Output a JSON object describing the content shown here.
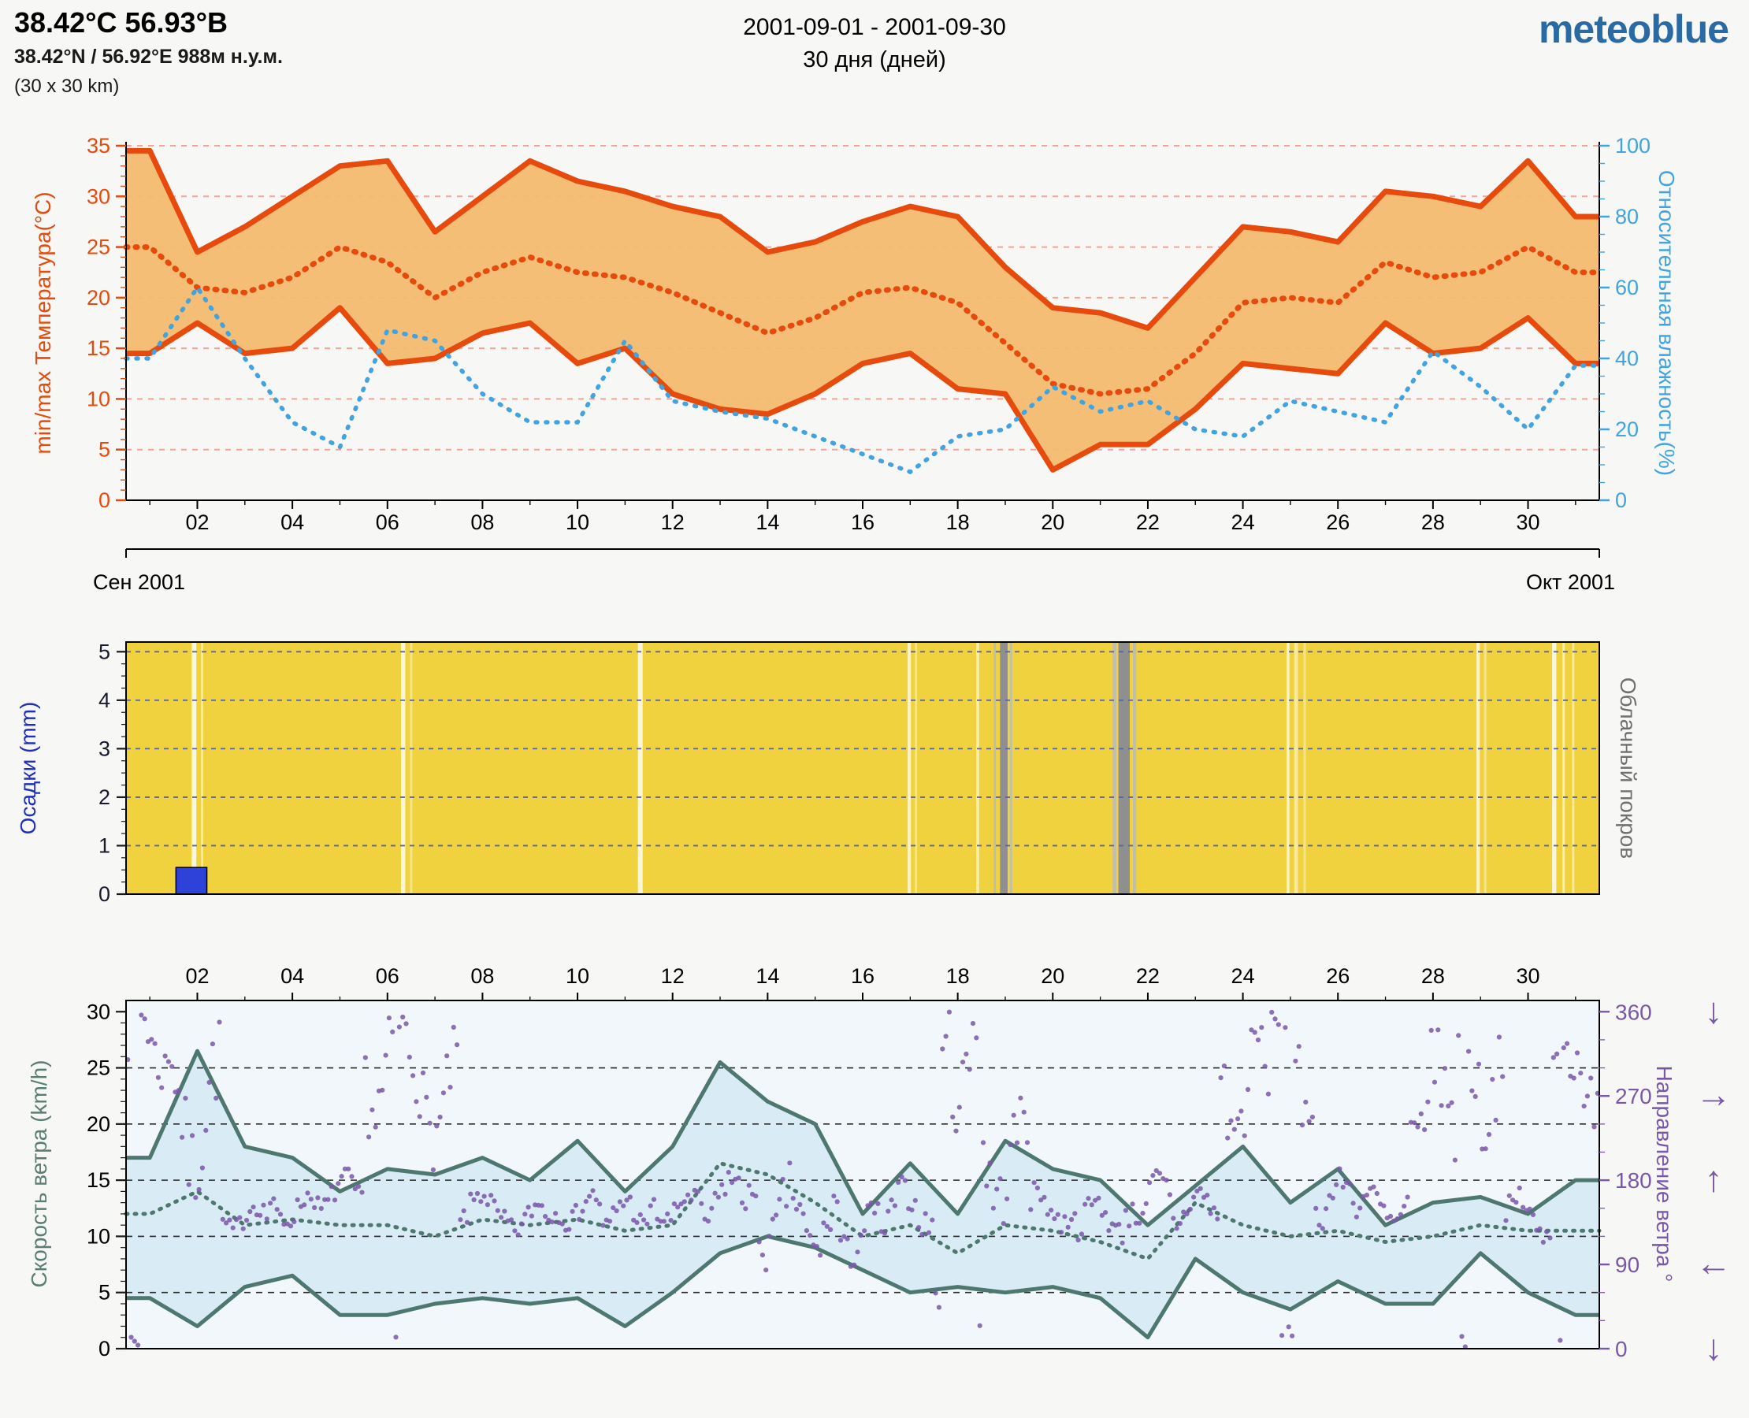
{
  "header": {
    "title": "38.42°С 56.93°В",
    "subtitle": "38.42°N / 56.92°E   988м н.у.м.",
    "area": "(30 x 30 km)",
    "date_range": "2001-09-01 - 2001-09-30",
    "duration": "30 дня (дней)",
    "logo": "meteoblue",
    "logo_color": "#2a6aa4"
  },
  "chart_data": [
    {
      "type": "area",
      "name": "temperature-humidity",
      "days": [
        1,
        2,
        3,
        4,
        5,
        6,
        7,
        8,
        9,
        10,
        11,
        12,
        13,
        14,
        15,
        16,
        17,
        18,
        19,
        20,
        21,
        22,
        23,
        24,
        25,
        26,
        27,
        28,
        29,
        30,
        31
      ],
      "series": [
        {
          "name": "max_temperature",
          "color": "#e64a0c",
          "style": "solid",
          "values": [
            34.5,
            24.5,
            27,
            30,
            33,
            33.5,
            26.5,
            30,
            33.5,
            31.5,
            30.5,
            29,
            28,
            24.5,
            25.5,
            27.5,
            29,
            28,
            23,
            19,
            18.5,
            17,
            22,
            27,
            26.5,
            25.5,
            30.5,
            30,
            29,
            33.5,
            28
          ]
        },
        {
          "name": "mean_temperature",
          "color": "#e64a0c",
          "style": "dotted",
          "values": [
            25,
            21,
            20.5,
            22,
            25,
            23.5,
            20,
            22.5,
            24,
            22.5,
            22,
            20.5,
            18.5,
            16.5,
            18,
            20.5,
            21,
            19.5,
            15.5,
            11.5,
            10.5,
            11,
            14.5,
            19.5,
            20,
            19.5,
            23.5,
            22,
            22.5,
            25,
            22.5
          ]
        },
        {
          "name": "min_temperature",
          "color": "#e64a0c",
          "style": "solid",
          "values": [
            14.5,
            17.5,
            14.5,
            15,
            19,
            13.5,
            14,
            16.5,
            17.5,
            13.5,
            15,
            10.5,
            9,
            8.5,
            10.5,
            13.5,
            14.5,
            11,
            10.5,
            3,
            5.5,
            5.5,
            9,
            13.5,
            13,
            12.5,
            17.5,
            14.5,
            15,
            18,
            13.5
          ]
        },
        {
          "name": "relative_humidity",
          "color": "#41a3e0",
          "style": "dotted",
          "axis": "right",
          "values": [
            40,
            60,
            40,
            22,
            15,
            48,
            45,
            30,
            22,
            22,
            45,
            28,
            25,
            23,
            18,
            13,
            8,
            18,
            20,
            32,
            25,
            28,
            20,
            18,
            28,
            25,
            22,
            42,
            32,
            20,
            38
          ]
        }
      ],
      "band": {
        "upper": "max_temperature",
        "lower": "min_temperature",
        "fill": "#f3bb70"
      },
      "ylabel_left": "min/max Температура(°C)",
      "ylabel_right": "Относительная влажность(%)",
      "ylim_left": [
        0,
        35
      ],
      "ylim_right": [
        0,
        100
      ],
      "yticks_left": [
        0,
        5,
        10,
        15,
        20,
        25,
        30,
        35
      ],
      "yticks_right": [
        0,
        20,
        40,
        60,
        80,
        100
      ],
      "gridlines": [
        5,
        10,
        15,
        20,
        25,
        30,
        35
      ],
      "grid_color": "#f2a49c",
      "xtick_values": [
        2,
        4,
        6,
        8,
        10,
        12,
        14,
        16,
        18,
        20,
        22,
        24,
        26,
        28,
        30
      ],
      "xtick_labels": [
        "02",
        "04",
        "06",
        "08",
        "10",
        "12",
        "14",
        "16",
        "18",
        "20",
        "22",
        "24",
        "26",
        "28",
        "30"
      ],
      "footer_left": "Сен 2001",
      "footer_right": "Окт 2001"
    },
    {
      "type": "bar",
      "name": "precipitation-cloudcover",
      "ylabel_left": "Осадки (mm)",
      "ylabel_right": "Облачный покров",
      "ylim": [
        0,
        5.2
      ],
      "yticks": [
        0,
        1,
        2,
        3,
        4,
        5
      ],
      "gridlines": [
        1,
        2,
        3,
        4,
        5
      ],
      "grid_color": "#5a64a8",
      "background": "#f0d23e",
      "bars": [
        {
          "day_start": 1.55,
          "day_end": 2.2,
          "value": 0.55,
          "color": "#2e41d8"
        }
      ],
      "cloud_bands": [
        {
          "d": 1.93,
          "w": 0.1,
          "c": "#ffffff",
          "o": 0.8
        },
        {
          "d": 2.1,
          "w": 0.05,
          "c": "#ffffff",
          "o": 0.5
        },
        {
          "d": 6.33,
          "w": 0.09,
          "c": "#ffffff",
          "o": 0.8
        },
        {
          "d": 6.5,
          "w": 0.04,
          "c": "#ffffff",
          "o": 0.4
        },
        {
          "d": 11.32,
          "w": 0.1,
          "c": "#ffffff",
          "o": 0.8
        },
        {
          "d": 16.98,
          "w": 0.07,
          "c": "#ffffff",
          "o": 0.7
        },
        {
          "d": 17.12,
          "w": 0.04,
          "c": "#ffffff",
          "o": 0.4
        },
        {
          "d": 18.42,
          "w": 0.06,
          "c": "#ffffff",
          "o": 0.6
        },
        {
          "d": 18.78,
          "w": 0.05,
          "c": "#bbbbbb",
          "o": 0.9
        },
        {
          "d": 18.97,
          "w": 0.16,
          "c": "#8f8f8f",
          "o": 1
        },
        {
          "d": 19.12,
          "w": 0.05,
          "c": "#bbbbbb",
          "o": 0.9
        },
        {
          "d": 21.3,
          "w": 0.08,
          "c": "#bbbbbb",
          "o": 0.9
        },
        {
          "d": 21.5,
          "w": 0.24,
          "c": "#8f8f8f",
          "o": 1
        },
        {
          "d": 21.72,
          "w": 0.07,
          "c": "#bbbbbb",
          "o": 0.9
        },
        {
          "d": 24.95,
          "w": 0.06,
          "c": "#ffffff",
          "o": 0.7
        },
        {
          "d": 25.12,
          "w": 0.08,
          "c": "#ffffff",
          "o": 0.5
        },
        {
          "d": 25.3,
          "w": 0.04,
          "c": "#ffffff",
          "o": 0.4
        },
        {
          "d": 28.95,
          "w": 0.07,
          "c": "#ffffff",
          "o": 0.7
        },
        {
          "d": 29.1,
          "w": 0.04,
          "c": "#ffffff",
          "o": 0.4
        },
        {
          "d": 30.55,
          "w": 0.09,
          "c": "#ffffff",
          "o": 0.8
        },
        {
          "d": 30.75,
          "w": 0.05,
          "c": "#ffffff",
          "o": 0.6
        },
        {
          "d": 30.95,
          "w": 0.05,
          "c": "#ffffff",
          "o": 0.5
        }
      ]
    },
    {
      "type": "line",
      "name": "wind",
      "days": [
        1,
        2,
        3,
        4,
        5,
        6,
        7,
        8,
        9,
        10,
        11,
        12,
        13,
        14,
        15,
        16,
        17,
        18,
        19,
        20,
        21,
        22,
        23,
        24,
        25,
        26,
        27,
        28,
        29,
        30,
        31
      ],
      "series": [
        {
          "name": "max_wind_speed",
          "color": "#4e776f",
          "style": "solid",
          "values": [
            17,
            26.5,
            18,
            17,
            14,
            16,
            15.5,
            17,
            15,
            18.5,
            14,
            18,
            25.5,
            22,
            20,
            12,
            16.5,
            12,
            18.5,
            16,
            15,
            11,
            14.5,
            18,
            13,
            16,
            11,
            13,
            13.5,
            12,
            15
          ]
        },
        {
          "name": "mean_wind_speed",
          "color": "#4e776f",
          "style": "dotted",
          "values": [
            12,
            14,
            11,
            11.5,
            11,
            11,
            10,
            11.5,
            11,
            11.5,
            10.5,
            11,
            16.5,
            15.5,
            13,
            10,
            11,
            8.5,
            11,
            10.5,
            9.5,
            8,
            13,
            11,
            10,
            10.5,
            9.5,
            10,
            11,
            10.5,
            10.5
          ]
        },
        {
          "name": "min_wind_speed",
          "color": "#4e776f",
          "style": "solid",
          "values": [
            4.5,
            2,
            5.5,
            6.5,
            3,
            3,
            4,
            4.5,
            4,
            4.5,
            2,
            5,
            8.5,
            10,
            9,
            7,
            5,
            5.5,
            5,
            5.5,
            4.5,
            1,
            8,
            5,
            3.5,
            6,
            4,
            4,
            8.5,
            5,
            3
          ]
        }
      ],
      "band": {
        "upper": "max_wind_speed",
        "lower": "min_wind_speed",
        "fill": "#d9ebf4"
      },
      "background": "#f1f7fa",
      "ylabel_left": "Скорость ветра (km/h)",
      "ylabel_right": "Направление ветра °",
      "ylim_left": [
        0,
        31
      ],
      "yticks_left": [
        0,
        5,
        10,
        15,
        20,
        25,
        30
      ],
      "ylim_right": [
        0,
        372
      ],
      "yticks_right": [
        0,
        90,
        180,
        270,
        360
      ],
      "gridlines": [
        0,
        5,
        10,
        15,
        20,
        25
      ],
      "grid_color": "#2a2a2a",
      "xtick_values": [
        2,
        4,
        6,
        8,
        10,
        12,
        14,
        16,
        18,
        20,
        22,
        24,
        26,
        28,
        30
      ],
      "xtick_labels": [
        "02",
        "04",
        "06",
        "08",
        "10",
        "12",
        "14",
        "16",
        "18",
        "20",
        "22",
        "24",
        "26",
        "28",
        "30"
      ],
      "direction": {
        "color": "#7a57a8",
        "samples_per_day": 14,
        "seed": 7,
        "daily_mean_deg": [
          330,
          250,
          140,
          150,
          165,
          300,
          270,
          150,
          140,
          150,
          142,
          150,
          160,
          140,
          132,
          122,
          150,
          330,
          200,
          150,
          140,
          160,
          150,
          280,
          320,
          160,
          150,
          260,
          300,
          140,
          300
        ],
        "daily_spread_deg": [
          60,
          110,
          25,
          25,
          30,
          90,
          80,
          30,
          25,
          25,
          30,
          25,
          40,
          60,
          50,
          40,
          35,
          110,
          80,
          30,
          30,
          35,
          30,
          90,
          100,
          35,
          30,
          90,
          100,
          40,
          90
        ]
      },
      "arrows": [
        {
          "deg": 360,
          "glyph": "↓"
        },
        {
          "deg": 270,
          "glyph": "→"
        },
        {
          "deg": 180,
          "glyph": "↑"
        },
        {
          "deg": 90,
          "glyph": "←"
        },
        {
          "deg": 0,
          "glyph": "↓"
        }
      ]
    }
  ]
}
